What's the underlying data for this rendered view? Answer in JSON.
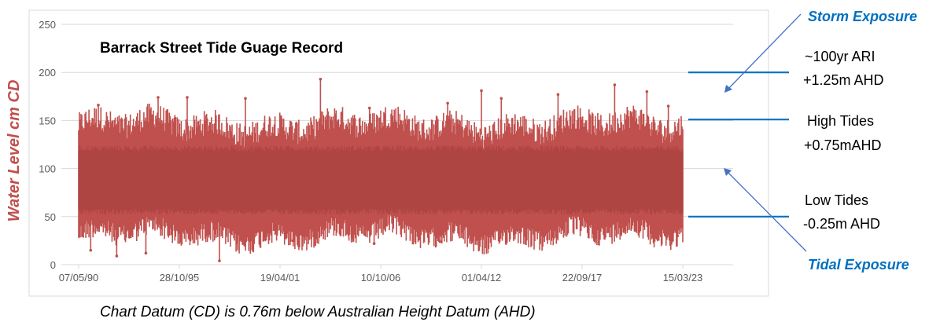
{
  "colors": {
    "series": "#C0504D",
    "series_dark": "#A8403D",
    "axis_label": "#C0504D",
    "annotation_blue": "#0070C0",
    "arrow_blue": "#4472C4",
    "gridline": "#D9D9D9",
    "tick_text": "#595959",
    "frame": "#D9D9D9"
  },
  "chart_data": {
    "type": "scatter",
    "title": "Barrack Street Tide Guage Record",
    "ylabel": "Water Level cm CD",
    "xlabel": "",
    "ylim": [
      0,
      250
    ],
    "yticks": [
      0,
      50,
      100,
      150,
      200,
      250
    ],
    "xlim": [
      "1990-05-07",
      "2023-03-15"
    ],
    "xticks": [
      "07/05/90",
      "28/10/95",
      "19/04/01",
      "10/10/06",
      "01/04/12",
      "22/09/17",
      "15/03/23"
    ],
    "grid": true,
    "series": [
      {
        "x_range": [
          "1990-05-07",
          "2023-03-15"
        ],
        "typical_low": 50,
        "typical_high": 140,
        "notable_maxima": [
          {
            "x": "1991-06-01",
            "y": 166
          },
          {
            "x": "1994-09-01",
            "y": 174
          },
          {
            "x": "1996-04-01",
            "y": 174
          },
          {
            "x": "1999-06-01",
            "y": 173
          },
          {
            "x": "2003-07-01",
            "y": 193
          },
          {
            "x": "2006-03-01",
            "y": 163
          },
          {
            "x": "2010-06-01",
            "y": 168
          },
          {
            "x": "2012-04-01",
            "y": 181
          },
          {
            "x": "2013-05-01",
            "y": 173
          },
          {
            "x": "2016-06-01",
            "y": 177
          },
          {
            "x": "2019-07-01",
            "y": 187
          },
          {
            "x": "2021-04-01",
            "y": 180
          },
          {
            "x": "2022-06-01",
            "y": 165
          }
        ],
        "notable_minima": [
          {
            "x": "1991-01-01",
            "y": 15
          },
          {
            "x": "1992-06-01",
            "y": 9
          },
          {
            "x": "1994-01-01",
            "y": 12
          },
          {
            "x": "1998-01-01",
            "y": 4
          },
          {
            "x": "2002-01-01",
            "y": 25
          },
          {
            "x": "2006-06-01",
            "y": 22
          },
          {
            "x": "2010-01-01",
            "y": 24
          },
          {
            "x": "2018-06-01",
            "y": 25
          },
          {
            "x": "2022-12-01",
            "y": 30
          }
        ]
      }
    ]
  },
  "annotations": {
    "storm_exposure": "Storm Exposure",
    "tidal_exposure": "Tidal Exposure",
    "ari_line1": "~100yr ARI",
    "ari_line2": "+1.25m AHD",
    "high_line1": "High Tides",
    "high_line2": "+0.75mAHD",
    "low_line1": "Low Tides",
    "low_line2": "-0.25m AHD",
    "levels_cm_cd": {
      "ari": 200,
      "high": 151,
      "low": 50
    }
  },
  "caption": "Chart Datum (CD) is 0.76m below Australian Height Datum (AHD)"
}
